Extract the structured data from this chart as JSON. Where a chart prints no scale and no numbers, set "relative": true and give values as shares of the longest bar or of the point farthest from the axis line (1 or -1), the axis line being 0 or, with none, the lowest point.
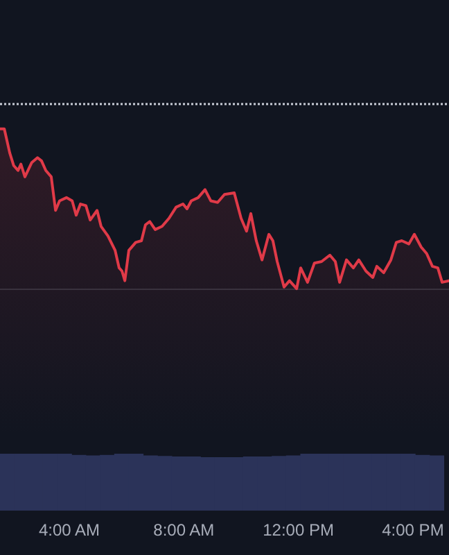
{
  "chart_data": [
    {
      "type": "area",
      "relative": true,
      "xlim": [
        1.58,
        17.26
      ],
      "tick_labels": false,
      "marker": "none",
      "line_style": "solid",
      "x": [
        1.58,
        1.73,
        1.92,
        2.06,
        2.21,
        2.31,
        2.45,
        2.69,
        2.89,
        3.03,
        3.18,
        3.37,
        3.52,
        3.66,
        3.9,
        4.1,
        4.24,
        4.39,
        4.58,
        4.73,
        4.97,
        5.11,
        5.35,
        5.6,
        5.74,
        5.84,
        5.94,
        6.08,
        6.32,
        6.52,
        6.66,
        6.81,
        7.0,
        7.24,
        7.48,
        7.73,
        7.97,
        8.11,
        8.26,
        8.5,
        8.74,
        8.94,
        9.18,
        9.42,
        9.76,
        10.0,
        10.19,
        10.34,
        10.53,
        10.73,
        10.97,
        11.11,
        11.26,
        11.5,
        11.69,
        11.94,
        12.08,
        12.32,
        12.56,
        12.81,
        13.1,
        13.29,
        13.44,
        13.68,
        13.92,
        14.11,
        14.36,
        14.6,
        14.74,
        14.98,
        15.23,
        15.42,
        15.61,
        15.86,
        16.05,
        16.29,
        16.48,
        16.68,
        16.87,
        17.02,
        17.26
      ],
      "series": [
        {
          "color": "#e03a48",
          "values": [
            1.0,
            1.0,
            0.85,
            0.77,
            0.74,
            0.78,
            0.7,
            0.79,
            0.82,
            0.8,
            0.74,
            0.7,
            0.49,
            0.55,
            0.57,
            0.55,
            0.46,
            0.53,
            0.52,
            0.43,
            0.49,
            0.39,
            0.33,
            0.24,
            0.13,
            0.11,
            0.05,
            0.24,
            0.29,
            0.3,
            0.4,
            0.42,
            0.37,
            0.39,
            0.44,
            0.51,
            0.53,
            0.5,
            0.55,
            0.57,
            0.62,
            0.55,
            0.54,
            0.59,
            0.6,
            0.44,
            0.36,
            0.47,
            0.3,
            0.18,
            0.34,
            0.3,
            0.17,
            0.01,
            0.05,
            0,
            0.13,
            0.04,
            0.16,
            0.17,
            0.21,
            0.17,
            0.04,
            0.18,
            0.13,
            0.18,
            0.11,
            0.07,
            0.14,
            0.1,
            0.18,
            0.29,
            0.3,
            0.28,
            0.34,
            0.26,
            0.22,
            0.14,
            0.13,
            0.04,
            0.05
          ]
        }
      ],
      "ref_lines": [
        {
          "axis": "y",
          "value": 1.16,
          "color": "#c8ccd6",
          "line_style": "dotted"
        }
      ]
    },
    {
      "type": "bar",
      "relative": true,
      "xlim": [
        1.58,
        17.26
      ],
      "tick_labels": "x",
      "xticks": [
        {
          "value": 4,
          "label": "4:00 AM"
        },
        {
          "value": 8,
          "label": "8:00 AM"
        },
        {
          "value": 12,
          "label": "12:00 PM"
        },
        {
          "value": 16,
          "label": "4:00 PM"
        }
      ],
      "x": [
        1.83,
        2.33,
        2.83,
        3.33,
        3.83,
        4.33,
        4.83,
        5.33,
        5.83,
        6.33,
        6.83,
        7.33,
        7.83,
        8.33,
        8.83,
        9.33,
        9.83,
        10.33,
        10.83,
        11.33,
        11.83,
        12.33,
        12.83,
        13.33,
        13.83,
        14.33,
        14.83,
        15.33,
        15.83,
        16.33,
        16.83
      ],
      "series": [
        {
          "color": "#2b3359",
          "values": [
            1,
            1,
            1,
            1,
            1,
            0.98,
            0.97,
            0.98,
            1,
            1,
            0.97,
            0.96,
            0.95,
            0.95,
            0.94,
            0.94,
            0.94,
            0.95,
            0.95,
            0.96,
            0.97,
            1,
            1,
            1,
            1,
            1,
            1,
            1,
            1,
            0.98,
            0.97
          ]
        }
      ]
    }
  ]
}
